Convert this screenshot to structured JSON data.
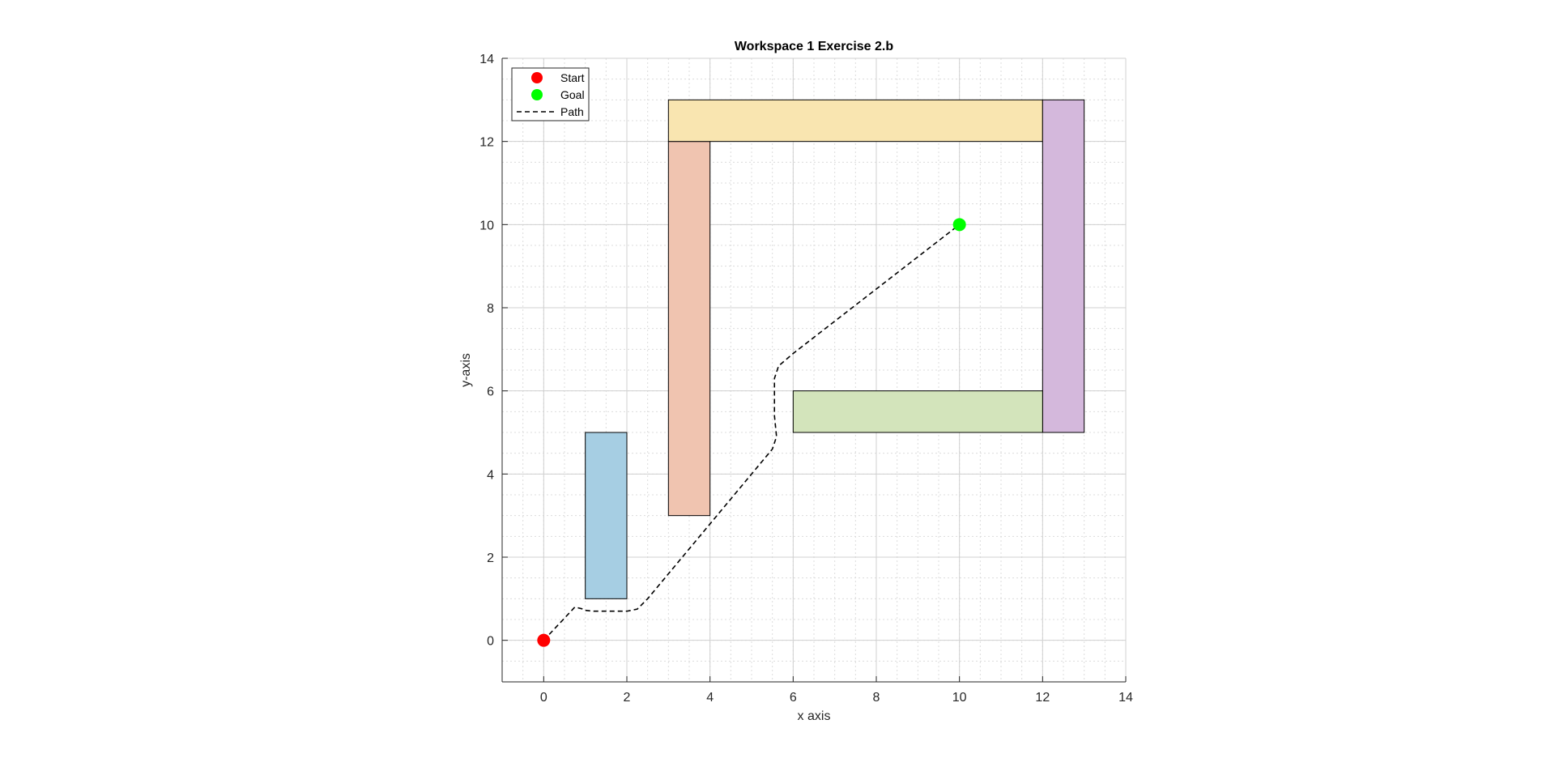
{
  "chart_data": {
    "type": "scatter",
    "title": "Workspace 1 Exercise 2.b",
    "xlabel": "x axis",
    "ylabel": "y-axis",
    "xlim": [
      -1,
      14
    ],
    "ylim": [
      -1,
      14
    ],
    "xticks": [
      0,
      2,
      4,
      6,
      8,
      10,
      12,
      14
    ],
    "yticks": [
      0,
      2,
      4,
      6,
      8,
      10,
      12,
      14
    ],
    "xtick_labels": [
      "0",
      "2",
      "4",
      "6",
      "8",
      "10",
      "12",
      "14"
    ],
    "ytick_labels": [
      "0",
      "2",
      "4",
      "6",
      "8",
      "10",
      "12",
      "14"
    ],
    "grid": true,
    "minor_grid": true,
    "legend_position": "top-left",
    "legend": [
      {
        "label": "Start",
        "kind": "marker",
        "color": "#ff0000"
      },
      {
        "label": "Goal",
        "kind": "marker",
        "color": "#00ff00"
      },
      {
        "label": "Path",
        "kind": "dashed-line",
        "color": "#000000"
      }
    ],
    "start": {
      "x": 0,
      "y": 0,
      "color": "#ff0000"
    },
    "goal": {
      "x": 10,
      "y": 10,
      "color": "#00ff00"
    },
    "obstacles": [
      {
        "x0": 1,
        "y0": 1,
        "x1": 2,
        "y1": 5,
        "color": "#a6cee3"
      },
      {
        "x0": 3,
        "y0": 3,
        "x1": 4,
        "y1": 12,
        "color": "#f0c4b0"
      },
      {
        "x0": 3,
        "y0": 12,
        "x1": 12,
        "y1": 13,
        "color": "#f9e5b0"
      },
      {
        "x0": 12,
        "y0": 5,
        "x1": 13,
        "y1": 13,
        "color": "#d4b8dc"
      },
      {
        "x0": 6,
        "y0": 5,
        "x1": 12,
        "y1": 6,
        "color": "#d3e4bb"
      }
    ],
    "path": {
      "style": "dashed",
      "color": "#000000",
      "points": [
        [
          0,
          0
        ],
        [
          0.75,
          0.8
        ],
        [
          0.95,
          0.75
        ],
        [
          1.0,
          0.72
        ],
        [
          1.2,
          0.7
        ],
        [
          2.0,
          0.7
        ],
        [
          2.25,
          0.75
        ],
        [
          2.5,
          1.0
        ],
        [
          4.0,
          2.8
        ],
        [
          5.5,
          4.6
        ],
        [
          5.6,
          4.9
        ],
        [
          5.55,
          5.4
        ],
        [
          5.55,
          6.3
        ],
        [
          5.65,
          6.6
        ],
        [
          6.0,
          6.9
        ],
        [
          10,
          10
        ]
      ]
    }
  }
}
